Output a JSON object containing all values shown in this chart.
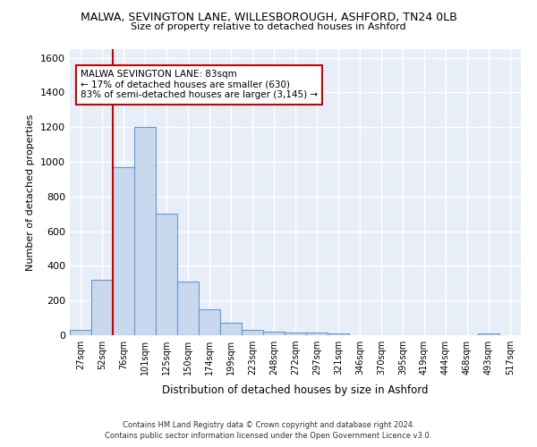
{
  "title_line1": "MALWA, SEVINGTON LANE, WILLESBOROUGH, ASHFORD, TN24 0LB",
  "title_line2": "Size of property relative to detached houses in Ashford",
  "xlabel": "Distribution of detached houses by size in Ashford",
  "ylabel": "Number of detached properties",
  "categories": [
    "27sqm",
    "52sqm",
    "76sqm",
    "101sqm",
    "125sqm",
    "150sqm",
    "174sqm",
    "199sqm",
    "223sqm",
    "248sqm",
    "272sqm",
    "297sqm",
    "321sqm",
    "346sqm",
    "370sqm",
    "395sqm",
    "419sqm",
    "444sqm",
    "468sqm",
    "493sqm",
    "517sqm"
  ],
  "values": [
    30,
    320,
    970,
    1200,
    700,
    310,
    150,
    70,
    30,
    20,
    15,
    15,
    10,
    0,
    0,
    0,
    0,
    0,
    0,
    10,
    0
  ],
  "bar_color": "#c8d8ee",
  "bar_edge_color": "#6699cc",
  "vline_x": 1.5,
  "vline_color": "#cc0000",
  "annotation_line1": "MALWA SEVINGTON LANE: 83sqm",
  "annotation_line2": "← 17% of detached houses are smaller (630)",
  "annotation_line3": "83% of semi-detached houses are larger (3,145) →",
  "annotation_box_facecolor": "#ffffff",
  "annotation_box_edgecolor": "#cc0000",
  "ylim": [
    0,
    1650
  ],
  "background_color": "#e8eef8",
  "grid_color": "#ffffff",
  "footer_line1": "Contains HM Land Registry data © Crown copyright and database right 2024.",
  "footer_line2": "Contains public sector information licensed under the Open Government Licence v3.0."
}
